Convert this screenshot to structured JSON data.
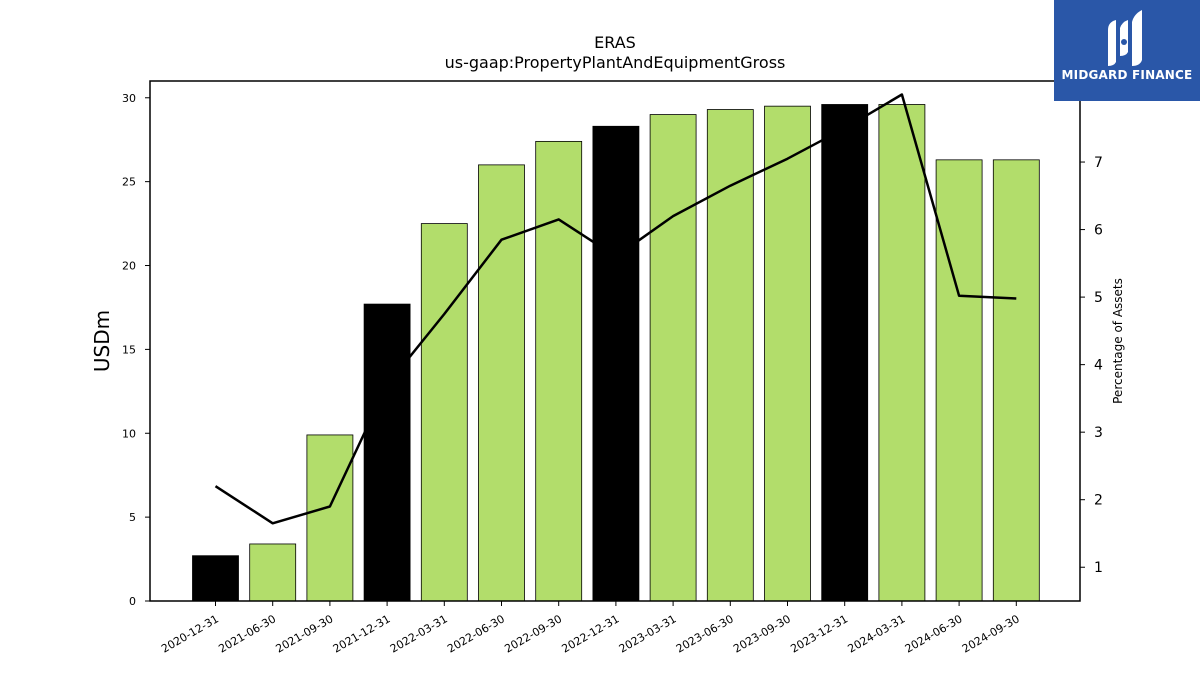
{
  "chart_data": {
    "type": "bar",
    "title": "ERAS",
    "subtitle": "us-gaap:PropertyPlantAndEquipmentGross",
    "ylabel": "USDm",
    "y2label": "Percentage of Assets",
    "ylim": [
      0,
      31
    ],
    "y2lim": [
      0.5,
      8.2
    ],
    "yticks": [
      0,
      5,
      10,
      15,
      20,
      25,
      30
    ],
    "y2ticks": [
      1,
      2,
      3,
      4,
      5,
      6,
      7,
      8
    ],
    "categories": [
      "2020-12-31",
      "2021-06-30",
      "2021-09-30",
      "2021-12-31",
      "2022-03-31",
      "2022-06-30",
      "2022-09-30",
      "2022-12-31",
      "2023-03-31",
      "2023-06-30",
      "2023-09-30",
      "2023-12-31",
      "2024-03-31",
      "2024-06-30",
      "2024-09-30"
    ],
    "series": [
      {
        "axis": "left",
        "kind": "bar",
        "values": [
          2.7,
          3.4,
          9.9,
          17.7,
          22.5,
          26.0,
          27.4,
          28.3,
          29.0,
          29.3,
          29.5,
          29.6,
          29.6,
          26.3,
          26.3
        ]
      },
      {
        "axis": "right",
        "kind": "line",
        "values": [
          2.2,
          1.65,
          1.9,
          3.7,
          4.75,
          5.85,
          6.15,
          5.6,
          6.2,
          6.65,
          7.05,
          7.5,
          8.0,
          5.02,
          4.98
        ]
      }
    ],
    "bar_colors": [
      "#000000",
      "#b2dd6b",
      "#b2dd6b",
      "#000000",
      "#b2dd6b",
      "#b2dd6b",
      "#b2dd6b",
      "#000000",
      "#b2dd6b",
      "#b2dd6b",
      "#b2dd6b",
      "#000000",
      "#b2dd6b",
      "#b2dd6b",
      "#b2dd6b"
    ],
    "line_color": "#000000",
    "grid": false
  },
  "logo": {
    "text": "MIDGARD FINANCE",
    "bg_color": "#2a57a8"
  }
}
